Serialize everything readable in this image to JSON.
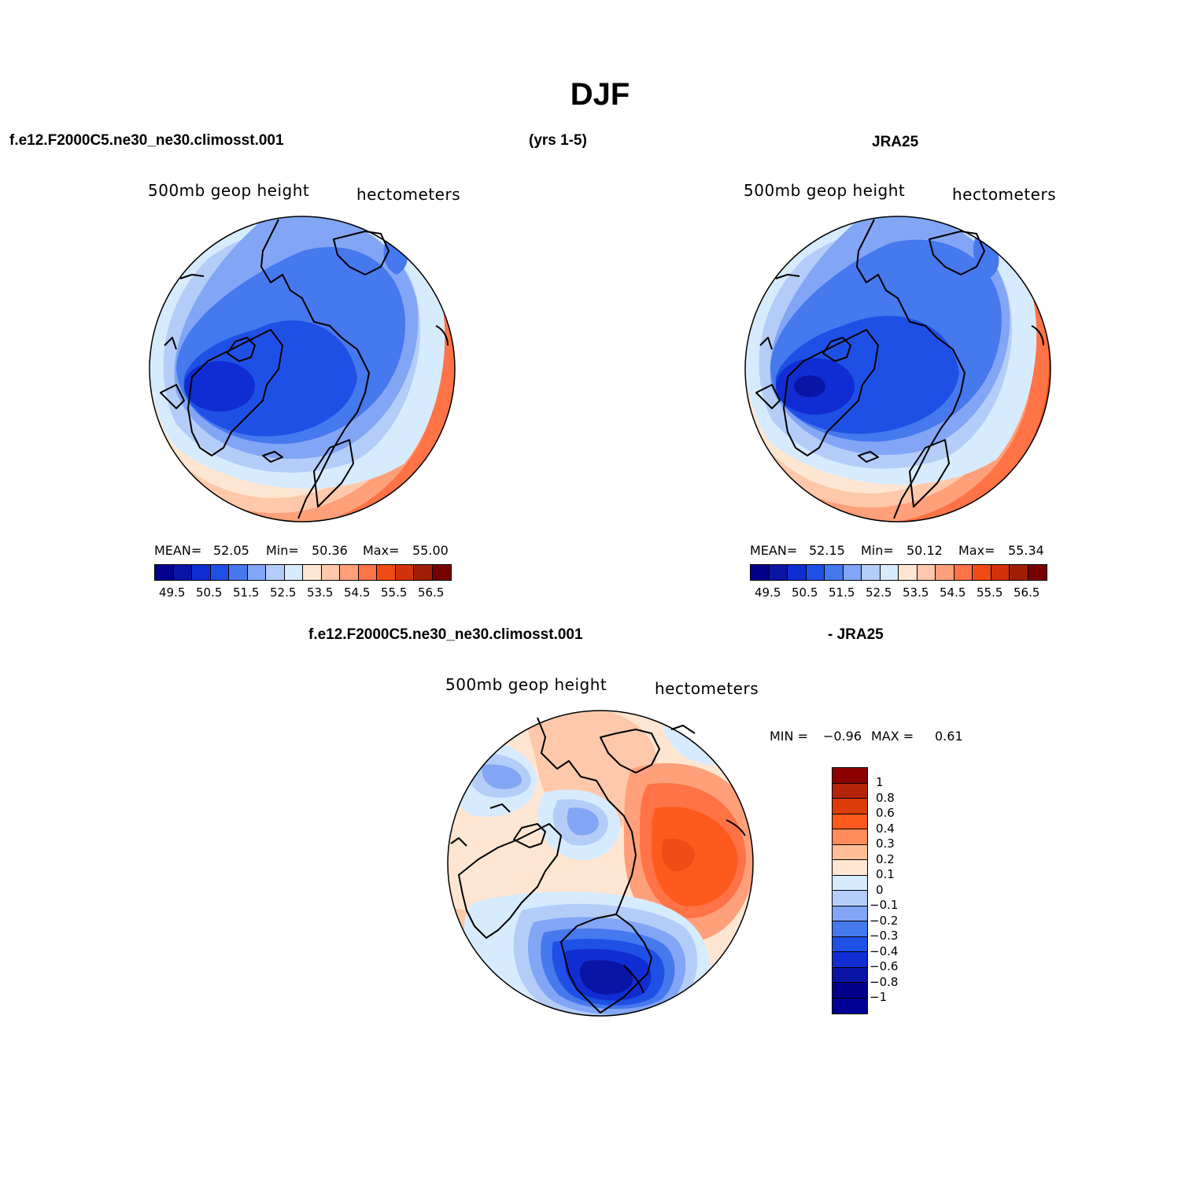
{
  "title": "DJF",
  "header": {
    "case_name": "f.e12.F2000C5.ne30_ne30.climosst.001",
    "years": "(yrs 1-5)",
    "obs_name": "JRA25"
  },
  "diff_header": {
    "case_name": "f.e12.F2000C5.ne30_ne30.climosst.001",
    "obs_name": "- JRA25"
  },
  "panels": [
    {
      "id": "model",
      "variable": "500mb  geop  height",
      "units": "hectometers",
      "mean_label": "MEAN=",
      "mean": "52.05",
      "min_label": "Min=",
      "min": "50.36",
      "max_label": "Max=",
      "max": "55.00"
    },
    {
      "id": "obs",
      "variable": "500mb  geop  height",
      "units": "hectometers",
      "mean_label": "MEAN=",
      "mean": "52.15",
      "min_label": "Min=",
      "min": "50.12",
      "max_label": "Max=",
      "max": "55.34"
    },
    {
      "id": "difference",
      "variable": "500mb  geop  height",
      "units": "hectometers",
      "min_label": "MIN =",
      "min": "−0.96",
      "max_label": "MAX =",
      "max": "0.61"
    }
  ],
  "colorbar_abs": {
    "colors": [
      "#00008c",
      "#0a14a5",
      "#0f2dd2",
      "#1e50e6",
      "#4678ee",
      "#82a5f5",
      "#b4cdf8",
      "#d7ebff",
      "#ffe6d2",
      "#ffc8aa",
      "#ffa07a",
      "#ff7346",
      "#f04b14",
      "#d2320a",
      "#a01e05",
      "#780000"
    ],
    "labels": [
      "49.5",
      "50.5",
      "51.5",
      "52.5",
      "53.5",
      "54.5",
      "55.5",
      "56.5"
    ]
  },
  "colorbar_diff": {
    "colors": [
      "#8c0000",
      "#b42305",
      "#dc3c0a",
      "#ff5a1e",
      "#ff8c5a",
      "#ffbe96",
      "#ffe6d2",
      "#d7ebff",
      "#b4cdf8",
      "#82a5f5",
      "#4678ee",
      "#1e50e6",
      "#0f2dd2",
      "#0a14a5",
      "#00008c",
      "#000096"
    ],
    "labels": [
      "1",
      "0.8",
      "0.6",
      "0.4",
      "0.3",
      "0.2",
      "0.1",
      "0",
      "−0.1",
      "−0.2",
      "−0.3",
      "−0.4",
      "−0.6",
      "−0.8",
      "−1"
    ]
  }
}
